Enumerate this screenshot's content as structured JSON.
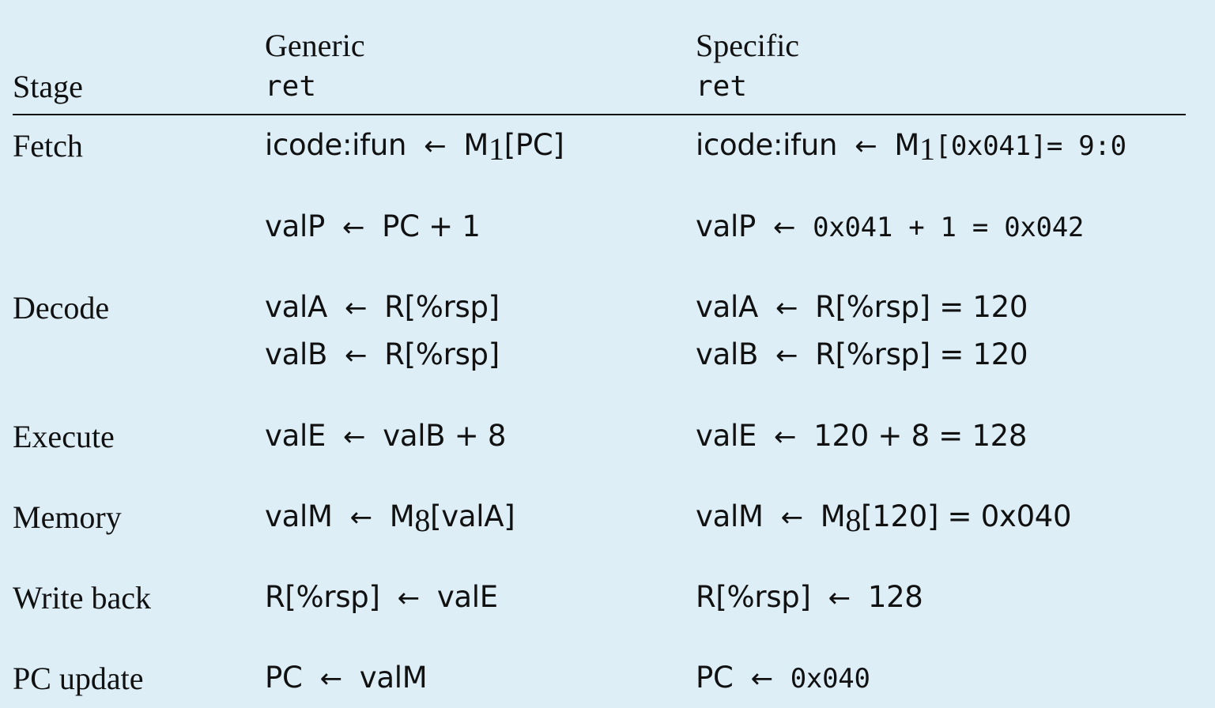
{
  "header": {
    "stage_label": "Stage",
    "generic_label": "Generic",
    "generic_instr": "ret",
    "specific_label": "Specific",
    "specific_instr": "ret"
  },
  "rows": [
    {
      "stage": "Fetch",
      "lines": [
        {
          "generic": {
            "lhs": "icode:ifun",
            "arrow": "←",
            "rhs_pre": "M",
            "rhs_sub": "1",
            "rhs_post": "[PC]"
          },
          "specific": {
            "lhs": "icode:ifun",
            "arrow": "←",
            "rhs_pre": "M",
            "rhs_sub": "1",
            "rhs_post": "[0x041]",
            "result": "= 9:0"
          }
        },
        {
          "generic": {
            "lhs": "valP",
            "arrow": "←",
            "rhs": "PC + 1"
          },
          "specific": {
            "lhs": "valP",
            "arrow": "←",
            "rhs": "0x041 + 1 = 0x042"
          }
        }
      ]
    },
    {
      "stage": "Decode",
      "lines": [
        {
          "generic": {
            "lhs": "valA",
            "arrow": "←",
            "rhs": "R[%rsp]"
          },
          "specific": {
            "lhs": "valA",
            "arrow": "←",
            "rhs": "R[%rsp] = 120"
          }
        },
        {
          "generic": {
            "lhs": "valB",
            "arrow": "←",
            "rhs": "R[%rsp]"
          },
          "specific": {
            "lhs": "valB",
            "arrow": "←",
            "rhs": "R[%rsp] = 120"
          }
        }
      ]
    },
    {
      "stage": "Execute",
      "lines": [
        {
          "generic": {
            "lhs": "valE",
            "arrow": "←",
            "rhs": "valB + 8"
          },
          "specific": {
            "lhs": "valE",
            "arrow": "←",
            "rhs": "120 + 8 = 128"
          }
        }
      ]
    },
    {
      "stage": "Memory",
      "lines": [
        {
          "generic": {
            "lhs": "valM",
            "arrow": "←",
            "rhs_pre": "M",
            "rhs_sub": "8",
            "rhs_post": "[valA]"
          },
          "specific": {
            "lhs": "valM",
            "arrow": "←",
            "rhs_pre": "M",
            "rhs_sub": "8",
            "rhs_post": "[120] = 0x040"
          }
        }
      ]
    },
    {
      "stage": "Write back",
      "lines": [
        {
          "generic": {
            "lhs": "R[%rsp]",
            "arrow": "←",
            "rhs": "valE"
          },
          "specific": {
            "lhs": "R[%rsp]",
            "arrow": "←",
            "rhs": "128"
          }
        }
      ]
    },
    {
      "stage": "PC update",
      "lines": [
        {
          "generic": {
            "lhs": "PC",
            "arrow": "←",
            "rhs": "valM"
          },
          "specific": {
            "lhs": "PC",
            "arrow": "←",
            "rhs": "0x040"
          }
        }
      ]
    }
  ]
}
